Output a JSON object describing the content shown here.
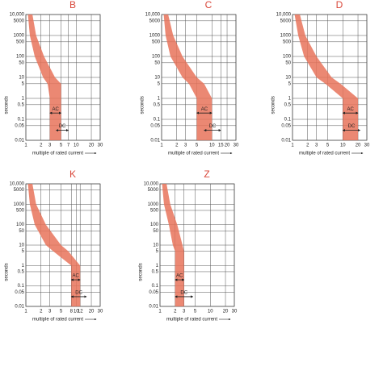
{
  "chart_data": [
    {
      "type": "band",
      "title": "B",
      "xlabel": "multiple of rated current",
      "ylabel": "seconds",
      "log_x": true,
      "log_y": true,
      "grid": true,
      "color": "#e8735a",
      "xlim": [
        1,
        30
      ],
      "ylim": [
        0.01,
        10000
      ],
      "xticks": [
        1,
        2,
        3,
        5,
        7,
        10,
        20,
        30
      ],
      "yticks": [
        {
          "value": 10000,
          "label": "10,000"
        },
        5000,
        1000,
        500,
        100,
        50,
        10,
        5,
        1,
        0.5,
        0.1,
        0.05,
        0.01
      ],
      "band": {
        "y": [
          10000,
          1000,
          100,
          10,
          5,
          1,
          0.01
        ],
        "x_min": [
          1.1,
          1.2,
          1.5,
          2.2,
          2.7,
          3,
          3
        ],
        "x_max": [
          1.35,
          1.6,
          2.3,
          3.8,
          5,
          5,
          5
        ]
      },
      "annotations": [
        {
          "text": "AC",
          "x": [
            3,
            5
          ],
          "y": 0.2
        },
        {
          "text": "DC",
          "x": [
            4,
            7
          ],
          "y": 0.03
        }
      ]
    },
    {
      "type": "band",
      "title": "C",
      "xlabel": "multiple of rated current",
      "ylabel": "seconds",
      "log_x": true,
      "log_y": true,
      "grid": true,
      "color": "#e8735a",
      "xlim": [
        1,
        30
      ],
      "ylim": [
        0.01,
        10000
      ],
      "xticks": [
        1,
        2,
        3,
        5,
        10,
        15,
        20,
        30
      ],
      "yticks": [
        {
          "value": 10000,
          "label": "10,000"
        },
        5000,
        1000,
        500,
        100,
        50,
        10,
        5,
        1,
        0.5,
        0.1,
        0.05,
        0.01
      ],
      "band": {
        "y": [
          10000,
          1000,
          100,
          10,
          5,
          1,
          0.01
        ],
        "x_min": [
          1.1,
          1.2,
          1.5,
          2.6,
          3.5,
          5,
          5
        ],
        "x_max": [
          1.35,
          1.7,
          2.6,
          5,
          7,
          10,
          10
        ]
      },
      "annotations": [
        {
          "text": "AC",
          "x": [
            5,
            10
          ],
          "y": 0.2
        },
        {
          "text": "DC",
          "x": [
            7,
            15
          ],
          "y": 0.03
        }
      ]
    },
    {
      "type": "band",
      "title": "D",
      "xlabel": "multiple of rated current",
      "ylabel": "seconds",
      "log_x": true,
      "log_y": true,
      "grid": true,
      "color": "#e8735a",
      "xlim": [
        1,
        30
      ],
      "ylim": [
        0.01,
        10000
      ],
      "xticks": [
        1,
        2,
        3,
        5,
        10,
        20,
        30
      ],
      "yticks": [
        {
          "value": 10000,
          "label": "10,000"
        },
        5000,
        1000,
        500,
        100,
        50,
        10,
        5,
        1,
        0.5,
        0.1,
        0.05,
        0.01
      ],
      "band": {
        "y": [
          10000,
          1000,
          100,
          10,
          5,
          1,
          0.01
        ],
        "x_min": [
          1.1,
          1.3,
          1.7,
          3,
          4.5,
          10,
          10
        ],
        "x_max": [
          1.4,
          1.8,
          3,
          6,
          9,
          20,
          20
        ]
      },
      "annotations": [
        {
          "text": "AC",
          "x": [
            10,
            20
          ],
          "y": 0.2
        },
        {
          "text": "DC",
          "x": [
            10,
            22
          ],
          "y": 0.03
        }
      ]
    },
    {
      "type": "band",
      "title": "K",
      "xlabel": "multiple of rated current",
      "ylabel": "seconds",
      "log_x": true,
      "log_y": true,
      "grid": true,
      "color": "#e8735a",
      "xlim": [
        1,
        30
      ],
      "ylim": [
        0.01,
        10000
      ],
      "xticks": [
        1,
        2,
        3,
        5,
        8,
        10,
        12,
        20,
        30
      ],
      "yticks": [
        {
          "value": 10000,
          "label": "10,000"
        },
        5000,
        1000,
        500,
        100,
        50,
        10,
        5,
        1,
        0.5,
        0.1,
        0.05,
        0.01
      ],
      "band": {
        "y": [
          10000,
          1000,
          100,
          10,
          5,
          1,
          0.01
        ],
        "x_min": [
          1.1,
          1.2,
          1.5,
          2.5,
          3.5,
          8,
          8
        ],
        "x_max": [
          1.35,
          1.6,
          2.5,
          5,
          7,
          12,
          12
        ]
      },
      "annotations": [
        {
          "text": "AC",
          "x": [
            8,
            12
          ],
          "y": 0.2
        },
        {
          "text": "DC",
          "x": [
            8,
            16
          ],
          "y": 0.03
        }
      ]
    },
    {
      "type": "band",
      "title": "Z",
      "xlabel": "multiple of rated current",
      "ylabel": "seconds",
      "log_x": true,
      "log_y": true,
      "grid": true,
      "color": "#e8735a",
      "xlim": [
        1,
        30
      ],
      "ylim": [
        0.01,
        10000
      ],
      "xticks": [
        1,
        2,
        3,
        5,
        10,
        20,
        30
      ],
      "yticks": [
        {
          "value": 10000,
          "label": "10,000"
        },
        5000,
        1000,
        500,
        100,
        50,
        10,
        5,
        1,
        0.5,
        0.1,
        0.05,
        0.01
      ],
      "band": {
        "y": [
          10000,
          1000,
          100,
          10,
          5,
          1,
          0.01
        ],
        "x_min": [
          1.1,
          1.2,
          1.5,
          1.8,
          2,
          2,
          2
        ],
        "x_max": [
          1.35,
          1.6,
          2.2,
          2.8,
          3,
          3,
          3
        ]
      },
      "annotations": [
        {
          "text": "AC",
          "x": [
            2,
            3
          ],
          "y": 0.2
        },
        {
          "text": "DC",
          "x": [
            2,
            4.5
          ],
          "y": 0.03
        }
      ]
    }
  ]
}
